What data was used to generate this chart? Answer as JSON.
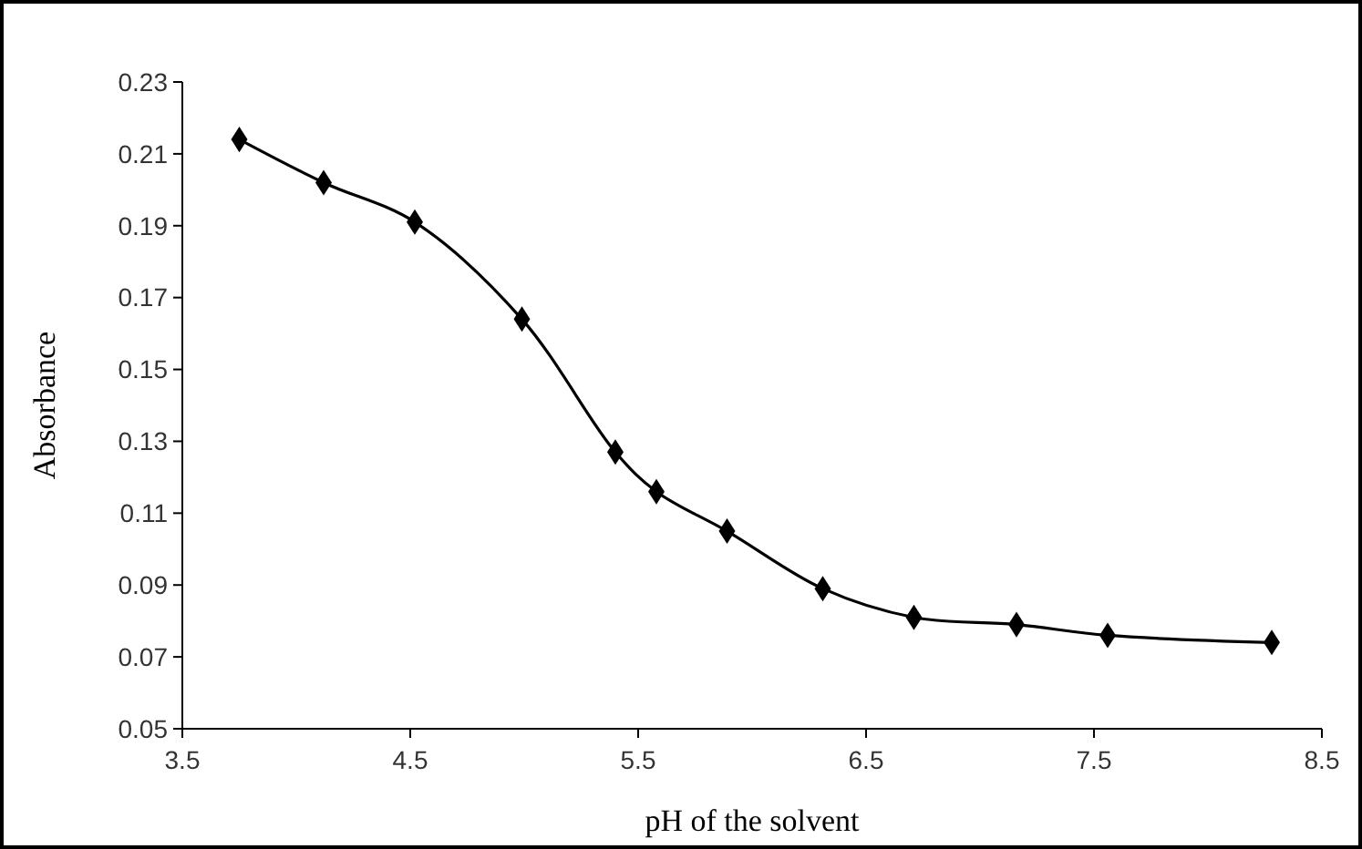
{
  "chart_data": {
    "type": "line",
    "xlabel": "pH of the solvent",
    "ylabel": "Absorbance",
    "x": [
      3.75,
      4.12,
      4.52,
      4.99,
      5.4,
      5.58,
      5.89,
      6.31,
      6.71,
      7.16,
      7.56,
      8.28
    ],
    "series": [
      {
        "color": "#000000",
        "values": [
          0.214,
          0.202,
          0.191,
          0.164,
          0.127,
          0.116,
          0.105,
          0.089,
          0.081,
          0.079,
          0.076,
          0.074
        ]
      }
    ],
    "xlim": [
      3.5,
      8.5
    ],
    "xticks": [
      {
        "value": 3.5,
        "label": "3.5"
      },
      {
        "value": 4.5,
        "label": "4.5"
      },
      {
        "value": 5.5,
        "label": "5.5"
      },
      {
        "value": 6.5,
        "label": "6.5"
      },
      {
        "value": 7.5,
        "label": "7.5"
      },
      {
        "value": 8.5,
        "label": "8.5"
      }
    ],
    "ylim": [
      0.05,
      0.23
    ],
    "yticks": [
      0.05,
      0.07,
      0.09,
      0.11,
      0.13,
      0.15,
      0.17,
      0.19,
      0.21,
      0.23
    ],
    "grid": false,
    "marker": "diamond",
    "line_style": "solid"
  }
}
